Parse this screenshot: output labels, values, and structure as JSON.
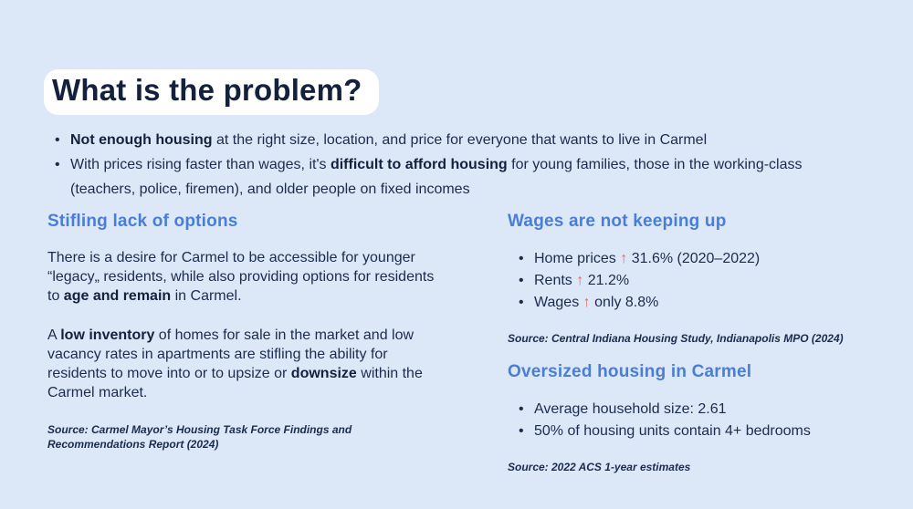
{
  "slide": {
    "title": "What is the problem?",
    "colors": {
      "background": "#dce8f8",
      "title_highlight": "#ffffff",
      "text_navy": "#1c2b4d",
      "heading_blue": "#4a7ed6",
      "arrow_red": "#e8695c"
    },
    "intro_bullets": [
      {
        "segments": [
          {
            "text": "Not enough housing",
            "cls": "b"
          },
          {
            "text": " at the right size, location, and price for everyone that wants to live in Carmel"
          }
        ]
      },
      {
        "segments": [
          {
            "text": "With prices rising faster than wages, it's "
          },
          {
            "text": "difficult to afford housing",
            "cls": "b"
          },
          {
            "text": " for young families, those in the working-class (teachers, police, firemen), and older people on fixed incomes"
          }
        ]
      }
    ],
    "left": {
      "heading": "Stifling lack of options",
      "paragraphs": [
        {
          "segments": [
            {
              "text": "There is a desire for Carmel to be accessible for younger “legacy„ residents, while also providing options for residents to "
            },
            {
              "text": "age and remain",
              "cls": "b"
            },
            {
              "text": " in Carmel."
            }
          ]
        },
        {
          "segments": [
            {
              "text": "A "
            },
            {
              "text": "low inventory",
              "cls": "b"
            },
            {
              "text": " of homes for sale in the market and low vacancy rates in apartments are stifling the ability for residents to move into or to upsize or "
            },
            {
              "text": "downsize",
              "cls": "b"
            },
            {
              "text": " within the Carmel market."
            }
          ]
        }
      ],
      "source": "Source: Carmel Mayor’s Housing Task Force Findings and Recommendations Report (2024)"
    },
    "right": {
      "sections": [
        {
          "heading": "Wages are not keeping up",
          "bullets": [
            {
              "segments": [
                {
                  "text": "Home prices "
                },
                {
                  "text": "↑",
                  "cls": "up"
                },
                {
                  "text": " 31.6% (2020–2022)"
                }
              ]
            },
            {
              "segments": [
                {
                  "text": "Rents "
                },
                {
                  "text": "↑",
                  "cls": "up"
                },
                {
                  "text": " 21.2%"
                }
              ]
            },
            {
              "segments": [
                {
                  "text": "Wages "
                },
                {
                  "text": "↑",
                  "cls": "up"
                },
                {
                  "text": " only 8.8%"
                }
              ]
            }
          ],
          "source": "Source: Central Indiana Housing Study, Indianapolis MPO (2024)"
        },
        {
          "heading": "Oversized housing in Carmel",
          "bullets": [
            {
              "segments": [
                {
                  "text": "Average household size: 2.61"
                }
              ]
            },
            {
              "segments": [
                {
                  "text": "50% of housing units contain 4+ bedrooms"
                }
              ]
            }
          ],
          "source": "Source: 2022 ACS 1-year estimates"
        }
      ]
    }
  }
}
